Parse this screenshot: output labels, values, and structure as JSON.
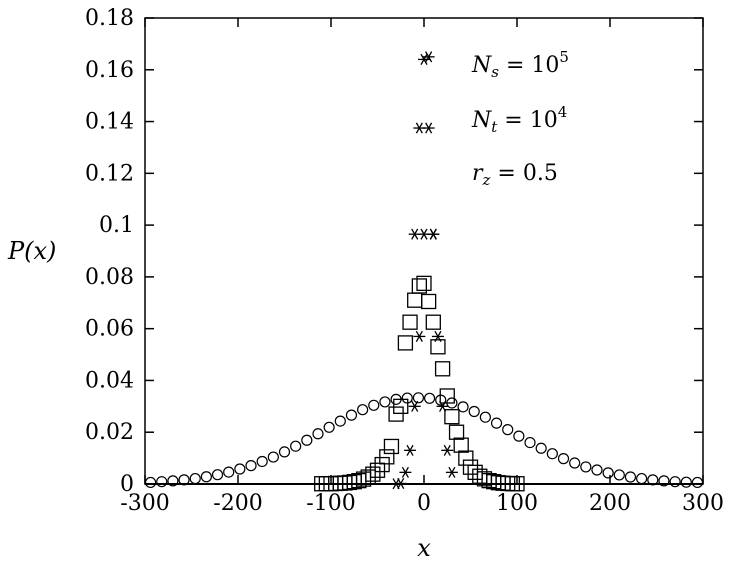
{
  "chart_data": {
    "type": "scatter",
    "title": "",
    "xlabel": "x",
    "ylabel": "P(x)",
    "xlim": [
      -300,
      300
    ],
    "ylim": [
      0,
      0.18
    ],
    "xticks": [
      "-300",
      "-200",
      "-100",
      "0",
      "100",
      "200",
      "300"
    ],
    "yticks": [
      "0",
      "0.02",
      "0.04",
      "0.06",
      "0.08",
      "0.1",
      "0.12",
      "0.14",
      "0.16",
      "0.18"
    ],
    "grid": false,
    "annotations": [
      {
        "base": "N",
        "sub": "s",
        "rel": " = 10",
        "sup": "5"
      },
      {
        "base": "N",
        "sub": "t",
        "rel": " = 10",
        "sup": "4"
      },
      {
        "base": "r",
        "sub": "z",
        "rel": " = 0.5",
        "sup": ""
      }
    ],
    "series": [
      {
        "marker": "circle",
        "x": [
          -294,
          -282,
          -270,
          -258,
          -246,
          -234,
          -222,
          -210,
          -198,
          -186,
          -174,
          -162,
          -150,
          -138,
          -126,
          -114,
          -102,
          -90,
          -78,
          -66,
          -54,
          -42,
          -30,
          -18,
          -6,
          6,
          18,
          30,
          42,
          54,
          66,
          78,
          90,
          102,
          114,
          126,
          138,
          150,
          162,
          174,
          186,
          198,
          210,
          222,
          234,
          246,
          258,
          270,
          282,
          294
        ],
        "y": [
          0.0006,
          0.0009,
          0.0012,
          0.0016,
          0.0021,
          0.0028,
          0.0036,
          0.0046,
          0.0058,
          0.0071,
          0.0087,
          0.0104,
          0.0124,
          0.0146,
          0.0169,
          0.0194,
          0.0219,
          0.0243,
          0.0266,
          0.0287,
          0.0304,
          0.0317,
          0.0327,
          0.0332,
          0.0333,
          0.0331,
          0.0324,
          0.0313,
          0.0298,
          0.028,
          0.0258,
          0.0235,
          0.021,
          0.0185,
          0.016,
          0.0138,
          0.0117,
          0.0098,
          0.0081,
          0.0066,
          0.0054,
          0.0043,
          0.0035,
          0.0027,
          0.0021,
          0.0016,
          0.0012,
          0.0009,
          0.0007,
          0.0006
        ]
      },
      {
        "marker": "square",
        "x": [
          -110,
          -105,
          -100,
          -95,
          -90,
          -85,
          -80,
          -75,
          -70,
          -65,
          -60,
          -55,
          -50,
          -45,
          -40,
          -35,
          -30,
          -25,
          -20,
          -15,
          -10,
          -5,
          0,
          5,
          10,
          15,
          20,
          25,
          30,
          35,
          40,
          45,
          50,
          55,
          60,
          65,
          70,
          75,
          80,
          85,
          90,
          95,
          100
        ],
        "y": [
          0.0001,
          0.0001,
          0.0001,
          0.0002,
          0.0003,
          0.0004,
          0.0006,
          0.0009,
          0.0013,
          0.0019,
          0.0027,
          0.0038,
          0.0053,
          0.0075,
          0.0105,
          0.0145,
          0.027,
          0.03,
          0.0545,
          0.0625,
          0.071,
          0.0765,
          0.0775,
          0.0705,
          0.0625,
          0.053,
          0.0445,
          0.034,
          0.026,
          0.02,
          0.015,
          0.01,
          0.0065,
          0.0045,
          0.003,
          0.002,
          0.0013,
          0.0009,
          0.0005,
          0.0003,
          0.0002,
          0.0001,
          0.0001
        ]
      },
      {
        "marker": "star",
        "x": [
          -30,
          -25,
          -20,
          -15,
          -10,
          -5,
          0,
          5,
          10,
          15,
          20,
          25,
          30
        ],
        "y": [
          0.0001,
          0.0002,
          0.0045,
          0.013,
          0.03,
          0.057,
          0.0965,
          0.165,
          0.0965,
          0.057,
          0.03,
          0.013,
          0.0045
        ],
        "extra_x": [
          -10,
          -5,
          0,
          5,
          10
        ],
        "extra_y": [
          0.0965,
          0.1375,
          0.164,
          0.1375,
          0.0965
        ]
      }
    ]
  }
}
